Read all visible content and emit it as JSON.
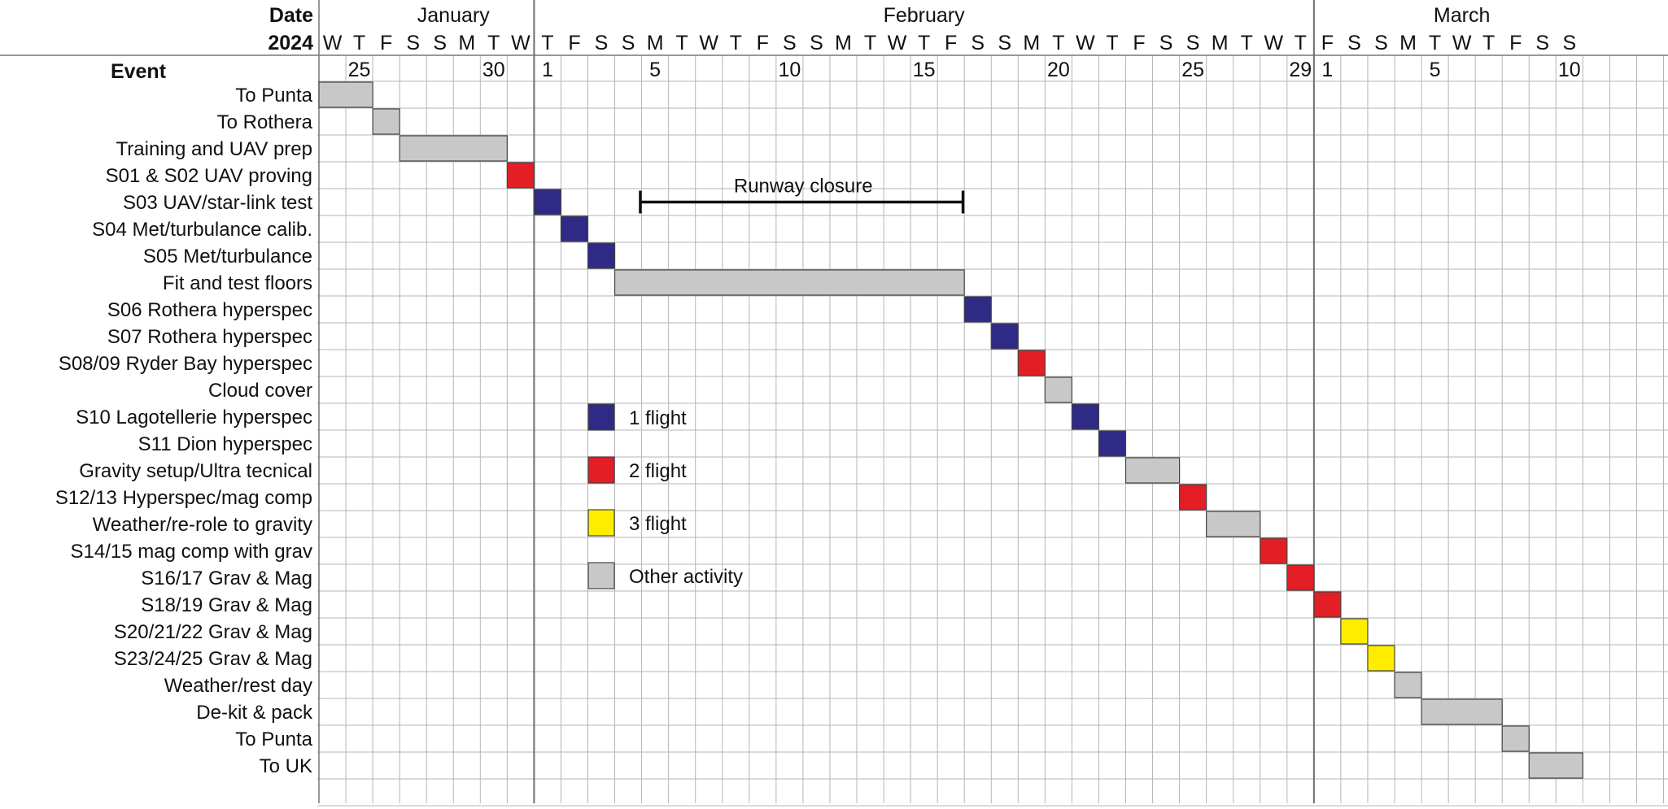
{
  "chart_data": {
    "type": "gantt",
    "header": {
      "date_label": "Date",
      "year_label": "2024",
      "event_label": "Event"
    },
    "months": [
      {
        "name": "January",
        "start_day": -6,
        "end_day": -1
      },
      {
        "name": "February",
        "start_day": 0,
        "end_day": 28
      },
      {
        "name": "March",
        "start_day": 29,
        "end_day": 39
      }
    ],
    "weekday_letters": [
      "W",
      "T",
      "F",
      "S",
      "S",
      "M",
      "T",
      "W",
      "T",
      "F",
      "S",
      "S",
      "M",
      "T",
      "W",
      "T",
      "F",
      "S",
      "S",
      "M",
      "T",
      "W",
      "T",
      "F",
      "S",
      "S",
      "M",
      "T",
      "W",
      "T",
      "F",
      "S",
      "S",
      "M",
      "T",
      "W",
      "T",
      "F",
      "S",
      "S",
      "M",
      "T",
      "W",
      "T",
      "F",
      "S",
      "S"
    ],
    "day_labels": [
      {
        "day": -7,
        "label": "25"
      },
      {
        "day": -2,
        "label": "30"
      },
      {
        "day": 0,
        "label": "1"
      },
      {
        "day": 4,
        "label": "5"
      },
      {
        "day": 9,
        "label": "10"
      },
      {
        "day": 14,
        "label": "15"
      },
      {
        "day": 19,
        "label": "20"
      },
      {
        "day": 24,
        "label": "25"
      },
      {
        "day": 28,
        "label": "29"
      },
      {
        "day": 29,
        "label": "1"
      },
      {
        "day": 33,
        "label": "5"
      },
      {
        "day": 38,
        "label": "10"
      }
    ],
    "events": [
      {
        "label": "To Punta",
        "start": -8,
        "end": -6,
        "category": "other"
      },
      {
        "label": "To Rothera",
        "start": -6,
        "end": -5,
        "category": "other"
      },
      {
        "label": "Training and UAV prep",
        "start": -5,
        "end": -1,
        "category": "other"
      },
      {
        "label": "S01 & S02 UAV proving",
        "start": -1,
        "end": 0,
        "category": "2flight"
      },
      {
        "label": "S03 UAV/star-link test",
        "start": 0,
        "end": 1,
        "category": "1flight"
      },
      {
        "label": "S04 Met/turbulance calib.",
        "start": 1,
        "end": 2,
        "category": "1flight"
      },
      {
        "label": "S05 Met/turbulance",
        "start": 2,
        "end": 3,
        "category": "1flight"
      },
      {
        "label": "Fit and test floors",
        "start": 3,
        "end": 16,
        "category": "other"
      },
      {
        "label": "S06 Rothera hyperspec",
        "start": 16,
        "end": 17,
        "category": "1flight"
      },
      {
        "label": "S07 Rothera hyperspec",
        "start": 17,
        "end": 18,
        "category": "1flight"
      },
      {
        "label": "S08/09 Ryder Bay hyperspec",
        "start": 18,
        "end": 19,
        "category": "2flight"
      },
      {
        "label": "Cloud cover",
        "start": 19,
        "end": 20,
        "category": "other"
      },
      {
        "label": "S10 Lagotellerie hyperspec",
        "start": 20,
        "end": 21,
        "category": "1flight"
      },
      {
        "label": "S11 Dion hyperspec",
        "start": 21,
        "end": 22,
        "category": "1flight"
      },
      {
        "label": "Gravity setup/Ultra tecnical",
        "start": 22,
        "end": 24,
        "category": "other"
      },
      {
        "label": "S12/13 Hyperspec/mag comp",
        "start": 24,
        "end": 25,
        "category": "2flight"
      },
      {
        "label": "Weather/re-role to gravity",
        "start": 25,
        "end": 27,
        "category": "other"
      },
      {
        "label": "S14/15 mag comp with grav",
        "start": 27,
        "end": 28,
        "category": "2flight"
      },
      {
        "label": "S16/17 Grav & Mag",
        "start": 28,
        "end": 29,
        "category": "2flight"
      },
      {
        "label": "S18/19 Grav & Mag",
        "start": 29,
        "end": 30,
        "category": "2flight"
      },
      {
        "label": "S20/21/22 Grav & Mag",
        "start": 30,
        "end": 31,
        "category": "3flight"
      },
      {
        "label": "S23/24/25 Grav & Mag",
        "start": 31,
        "end": 32,
        "category": "3flight"
      },
      {
        "label": "Weather/rest day",
        "start": 32,
        "end": 33,
        "category": "other"
      },
      {
        "label": "De-kit & pack",
        "start": 33,
        "end": 36,
        "category": "other"
      },
      {
        "label": "To Punta",
        "start": 36,
        "end": 37,
        "category": "other"
      },
      {
        "label": "To UK",
        "start": 37,
        "end": 39,
        "category": "other"
      }
    ],
    "annotation": {
      "label": "Runway closure",
      "start": 3.95,
      "end": 15.95,
      "row": 4.5
    },
    "legend": [
      {
        "key": "1flight",
        "label": "1 flight",
        "color": "#2e2a86"
      },
      {
        "key": "2flight",
        "label": "2 flight",
        "color": "#e31e24"
      },
      {
        "key": "3flight",
        "label": "3 flight",
        "color": "#ffed00"
      },
      {
        "key": "other",
        "label": "Other activity",
        "color": "#c8c8c8"
      }
    ],
    "grid": true
  }
}
